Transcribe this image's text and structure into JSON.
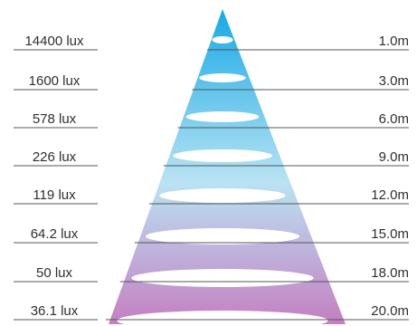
{
  "diagram": {
    "rows": [
      {
        "illuminance": "14400 lux",
        "distance": "1.0m"
      },
      {
        "illuminance": "1600 lux",
        "distance": "3.0m"
      },
      {
        "illuminance": "578 lux",
        "distance": "6.0m"
      },
      {
        "illuminance": "226 lux",
        "distance": "9.0m"
      },
      {
        "illuminance": "119 lux",
        "distance": "12.0m"
      },
      {
        "illuminance": "64.2 lux",
        "distance": "15.0m"
      },
      {
        "illuminance": "50 lux",
        "distance": "18.0m"
      },
      {
        "illuminance": "36.1 lux",
        "distance": "20.0m"
      }
    ],
    "colors": {
      "beam_top": "#16a9e6",
      "beam_mid": "#b9e3f3",
      "beam_bottom": "#c47fc1",
      "rule_line": "#555555",
      "text": "#2f2f2f",
      "ellipse": "#ffffff"
    }
  }
}
